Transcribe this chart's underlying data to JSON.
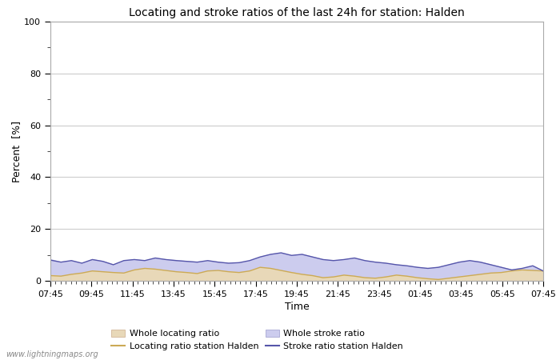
{
  "title": "Locating and stroke ratios of the last 24h for station: Halden",
  "xlabel": "Time",
  "ylabel": "Percent  [%]",
  "watermark": "www.lightningmaps.org",
  "ylim": [
    0,
    100
  ],
  "yticks": [
    0,
    20,
    40,
    60,
    80,
    100
  ],
  "yticks_minor": [
    10,
    30,
    50,
    70,
    90
  ],
  "x_labels": [
    "07:45",
    "09:45",
    "11:45",
    "13:45",
    "15:45",
    "17:45",
    "19:45",
    "21:45",
    "23:45",
    "01:45",
    "03:45",
    "05:45",
    "07:45"
  ],
  "bg_color": "#ffffff",
  "plot_bg_color": "#ffffff",
  "grid_color": "#cccccc",
  "whole_locating_fill_color": "#e8d8b8",
  "whole_stroke_fill_color": "#ccccee",
  "locating_station_color": "#ccaa55",
  "stroke_station_color": "#5555aa",
  "whole_locating": [
    2.5,
    2.0,
    2.8,
    3.2,
    4.0,
    3.8,
    3.5,
    3.2,
    4.5,
    5.0,
    4.8,
    4.2,
    3.8,
    3.5,
    3.0,
    4.0,
    4.2,
    3.8,
    3.5,
    4.0,
    5.5,
    5.0,
    4.2,
    3.5,
    2.8,
    2.2,
    1.5,
    1.8,
    2.5,
    2.0,
    1.5,
    1.2,
    1.8,
    2.5,
    2.0,
    1.5,
    1.0,
    0.8,
    1.2,
    1.8,
    2.2,
    2.8,
    3.2,
    3.5,
    4.0,
    4.5,
    4.2,
    4.0
  ],
  "whole_stroke": [
    8.5,
    7.5,
    8.0,
    7.0,
    8.5,
    7.8,
    6.5,
    8.0,
    8.5,
    8.0,
    9.0,
    8.5,
    8.2,
    7.8,
    7.5,
    8.0,
    7.5,
    7.0,
    7.2,
    8.0,
    9.5,
    10.5,
    11.0,
    10.0,
    10.5,
    9.5,
    8.5,
    8.0,
    8.5,
    9.0,
    8.0,
    7.5,
    7.0,
    6.5,
    6.0,
    5.5,
    5.0,
    5.5,
    6.5,
    7.5,
    8.0,
    7.5,
    6.5,
    5.5,
    4.5,
    5.0,
    6.0,
    4.0
  ],
  "locating_station": [
    2.0,
    1.8,
    2.5,
    3.0,
    3.8,
    3.5,
    3.2,
    3.0,
    4.2,
    4.8,
    4.5,
    4.0,
    3.5,
    3.2,
    2.8,
    3.8,
    4.0,
    3.5,
    3.2,
    3.8,
    5.2,
    4.8,
    4.0,
    3.2,
    2.5,
    2.0,
    1.2,
    1.5,
    2.2,
    1.8,
    1.2,
    1.0,
    1.5,
    2.2,
    1.8,
    1.2,
    0.8,
    0.5,
    1.0,
    1.5,
    2.0,
    2.5,
    3.0,
    3.2,
    3.8,
    4.2,
    4.0,
    3.8
  ],
  "stroke_station": [
    8.0,
    7.2,
    7.8,
    6.8,
    8.2,
    7.5,
    6.2,
    7.8,
    8.2,
    7.8,
    8.8,
    8.2,
    7.8,
    7.5,
    7.2,
    7.8,
    7.2,
    6.8,
    7.0,
    7.8,
    9.2,
    10.2,
    10.8,
    9.8,
    10.2,
    9.2,
    8.2,
    7.8,
    8.2,
    8.8,
    7.8,
    7.2,
    6.8,
    6.2,
    5.8,
    5.2,
    4.8,
    5.2,
    6.2,
    7.2,
    7.8,
    7.2,
    6.2,
    5.2,
    4.2,
    4.8,
    5.8,
    3.8
  ]
}
